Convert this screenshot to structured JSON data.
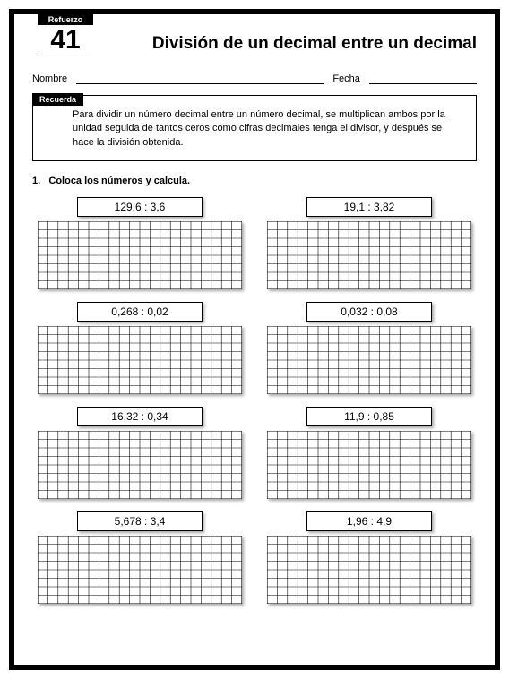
{
  "header": {
    "refuerzo_label": "Refuerzo",
    "lesson_number": "41",
    "title": "División de un decimal entre un decimal"
  },
  "fields": {
    "name_label": "Nombre",
    "date_label": "Fecha"
  },
  "recuerda": {
    "tab": "Recuerda",
    "text": "Para dividir un número decimal entre un número decimal, se multiplican ambos por la unidad seguida de tantos ceros como cifras decimales tenga el divisor, y después se hace la división obtenida."
  },
  "instruction": {
    "number": "1.",
    "text": "Coloca los números y calcula."
  },
  "grid": {
    "cols": 20,
    "rows": 8,
    "line_color": "#000000",
    "background": "#ffffff"
  },
  "problems": [
    {
      "expression": "129,6 : 3,6"
    },
    {
      "expression": "19,1 : 3,82"
    },
    {
      "expression": "0,268 : 0,02"
    },
    {
      "expression": "0,032 : 0,08"
    },
    {
      "expression": "16,32 : 0,34"
    },
    {
      "expression": "11,9 : 0,85"
    },
    {
      "expression": "5,678 : 3,4"
    },
    {
      "expression": "1,96 : 4,9"
    }
  ]
}
